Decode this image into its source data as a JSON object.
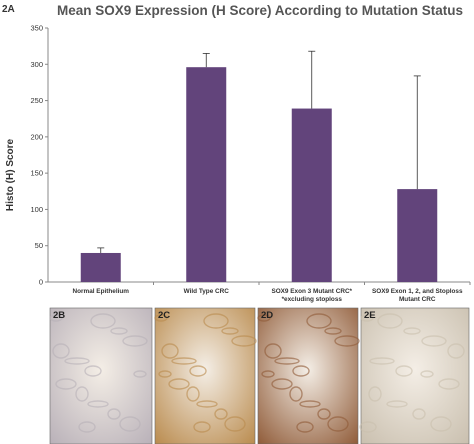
{
  "figure": {
    "panel_a_label": "2A",
    "micrographs": [
      {
        "label": "2B",
        "tone": "#b8b0b8"
      },
      {
        "label": "2C",
        "tone": "#b98a4c"
      },
      {
        "label": "2D",
        "tone": "#8f5a37"
      },
      {
        "label": "2E",
        "tone": "#c9bfae"
      }
    ]
  },
  "colors": {
    "bar": "#62447b",
    "axis": "#888888",
    "error": "#333333"
  },
  "chart_data": {
    "type": "bar",
    "title": "Mean SOX9 Expression (H Score) According to Mutation Status",
    "xlabel": "",
    "ylabel": "Histo (H) Score",
    "ylim": [
      0,
      350
    ],
    "yticks": [
      0,
      50,
      100,
      150,
      200,
      250,
      300,
      350
    ],
    "grid": false,
    "categories": [
      [
        "Normal Epithelium"
      ],
      [
        "Wild Type CRC"
      ],
      [
        "SOX9 Exon 3 Mutant CRC*",
        "*excluding stoploss"
      ],
      [
        "SOX9 Exon 1, 2, and Stoploss",
        "Mutant CRC"
      ]
    ],
    "values": [
      40,
      296,
      239,
      128
    ],
    "error_upper": [
      47,
      315,
      318,
      284
    ]
  }
}
